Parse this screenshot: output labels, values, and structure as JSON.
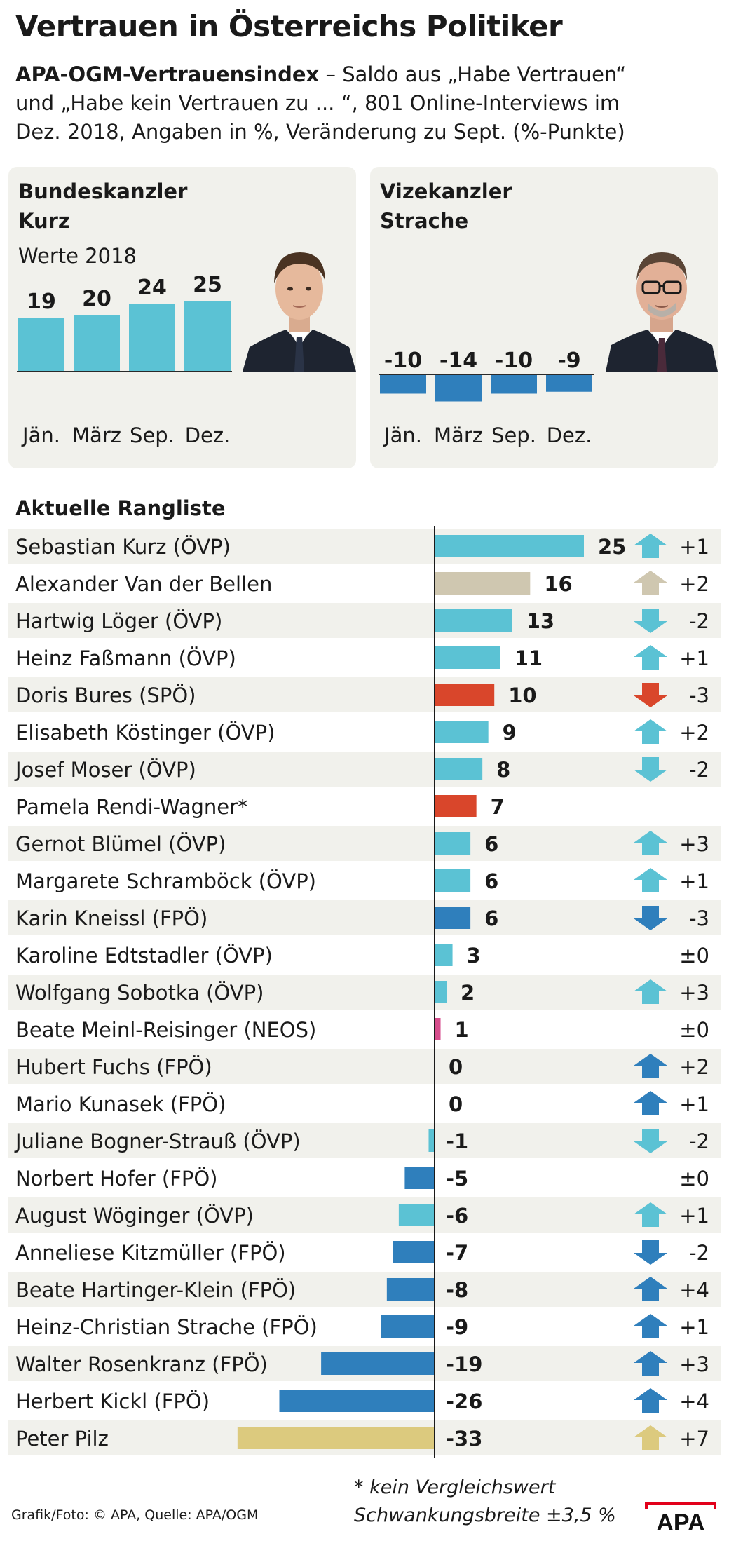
{
  "title": "Vertrauen in Österreichs Politiker",
  "subtitle": {
    "bold": "APA-OGM-Vertrauensindex",
    "line1_rest": " – Saldo aus „Habe Vertrauen“",
    "line2": "und „Habe kein Vertrauen zu ... “, 801 Online-Interviews im",
    "line3": "Dez. 2018, Angaben in %, Veränderung zu Sept. (%-Punkte)"
  },
  "panels": [
    {
      "title_line1": "Bundeskanzler",
      "title_line2": "Kurz",
      "subtitle": "Werte 2018",
      "color": "#5bc2d4",
      "categories": [
        "Jän.",
        "März",
        "Sep.",
        "Dez."
      ],
      "values": [
        19,
        20,
        24,
        25
      ],
      "labels": [
        "19",
        "20",
        "24",
        "25"
      ]
    },
    {
      "title_line1": "Vizekanzler",
      "title_line2": "Strache",
      "subtitle": "",
      "color": "#2f7fbc",
      "categories": [
        "Jän.",
        "März",
        "Sep.",
        "Dez."
      ],
      "values": [
        -10,
        -14,
        -10,
        -9
      ],
      "labels": [
        "-10",
        "-14",
        "-10",
        "-9"
      ]
    }
  ],
  "ranking_title": "Aktuelle Rangliste",
  "colors": {
    "oevp": "#5bc2d4",
    "fpoe": "#2f7fbc",
    "spoe": "#d9462b",
    "neutral": "#cfc7b0",
    "neos": "#d64d8c",
    "pilz": "#dcca7e",
    "row_band": "#f1f1ec"
  },
  "chart_data": {
    "type": "bar",
    "title": "Aktuelle Rangliste",
    "orientation": "horizontal",
    "xlim": [
      -33,
      25
    ],
    "rows": [
      {
        "name": "Sebastian Kurz (ÖVP)",
        "value": 25,
        "label": "25",
        "change": "+1",
        "direction": "up",
        "color": "oevp"
      },
      {
        "name": "Alexander Van der Bellen",
        "value": 16,
        "label": "16",
        "change": "+2",
        "direction": "up",
        "color": "neutral"
      },
      {
        "name": "Hartwig Löger (ÖVP)",
        "value": 13,
        "label": "13",
        "change": "-2",
        "direction": "down",
        "color": "oevp"
      },
      {
        "name": "Heinz Faßmann (ÖVP)",
        "value": 11,
        "label": "11",
        "change": "+1",
        "direction": "up",
        "color": "oevp"
      },
      {
        "name": "Doris Bures (SPÖ)",
        "value": 10,
        "label": "10",
        "change": "-3",
        "direction": "down",
        "color": "spoe"
      },
      {
        "name": "Elisabeth Köstinger (ÖVP)",
        "value": 9,
        "label": "9",
        "change": "+2",
        "direction": "up",
        "color": "oevp"
      },
      {
        "name": "Josef Moser (ÖVP)",
        "value": 8,
        "label": "8",
        "change": "-2",
        "direction": "down",
        "color": "oevp"
      },
      {
        "name": "Pamela Rendi-Wagner*",
        "value": 7,
        "label": "7",
        "change": "",
        "direction": "none",
        "color": "spoe"
      },
      {
        "name": "Gernot Blümel (ÖVP)",
        "value": 6,
        "label": "6",
        "change": "+3",
        "direction": "up",
        "color": "oevp"
      },
      {
        "name": "Margarete Schramböck (ÖVP)",
        "value": 6,
        "label": "6",
        "change": "+1",
        "direction": "up",
        "color": "oevp"
      },
      {
        "name": "Karin Kneissl (FPÖ)",
        "value": 6,
        "label": "6",
        "change": "-3",
        "direction": "down",
        "color": "fpoe"
      },
      {
        "name": "Karoline Edtstadler (ÖVP)",
        "value": 3,
        "label": "3",
        "change": "±0",
        "direction": "none",
        "color": "oevp"
      },
      {
        "name": "Wolfgang Sobotka (ÖVP)",
        "value": 2,
        "label": "2",
        "change": "+3",
        "direction": "up",
        "color": "oevp"
      },
      {
        "name": "Beate Meinl-Reisinger (NEOS)",
        "value": 1,
        "label": "1",
        "change": "±0",
        "direction": "none",
        "color": "neos"
      },
      {
        "name": "Hubert Fuchs (FPÖ)",
        "value": 0,
        "label": "0",
        "change": "+2",
        "direction": "up",
        "color": "fpoe"
      },
      {
        "name": "Mario Kunasek (FPÖ)",
        "value": 0,
        "label": "0",
        "change": "+1",
        "direction": "up",
        "color": "fpoe"
      },
      {
        "name": "Juliane Bogner-Strauß (ÖVP)",
        "value": -1,
        "label": "-1",
        "change": "-2",
        "direction": "down",
        "color": "oevp"
      },
      {
        "name": "Norbert Hofer (FPÖ)",
        "value": -5,
        "label": "-5",
        "change": "±0",
        "direction": "none",
        "color": "fpoe"
      },
      {
        "name": "August Wöginger (ÖVP)",
        "value": -6,
        "label": "-6",
        "change": "+1",
        "direction": "up",
        "color": "oevp"
      },
      {
        "name": "Anneliese Kitzmüller (FPÖ)",
        "value": -7,
        "label": "-7",
        "change": "-2",
        "direction": "down",
        "color": "fpoe"
      },
      {
        "name": "Beate Hartinger-Klein (FPÖ)",
        "value": -8,
        "label": "-8",
        "change": "+4",
        "direction": "up",
        "color": "fpoe"
      },
      {
        "name": "Heinz-Christian Strache (FPÖ)",
        "value": -9,
        "label": "-9",
        "change": "+1",
        "direction": "up",
        "color": "fpoe"
      },
      {
        "name": "Walter Rosenkranz (FPÖ)",
        "value": -19,
        "label": "-19",
        "change": "+3",
        "direction": "up",
        "color": "fpoe"
      },
      {
        "name": "Herbert Kickl (FPÖ)",
        "value": -26,
        "label": "-26",
        "change": "+4",
        "direction": "up",
        "color": "fpoe"
      },
      {
        "name": "Peter Pilz",
        "value": -33,
        "label": "-33",
        "change": "+7",
        "direction": "up",
        "color": "pilz"
      }
    ]
  },
  "footer": {
    "credit": "Grafik/Foto: © APA, Quelle: APA/OGM",
    "note": "* kein Vergleichswert",
    "range": "Schwankungsbreite ±3,5 %",
    "logo": "APA"
  }
}
